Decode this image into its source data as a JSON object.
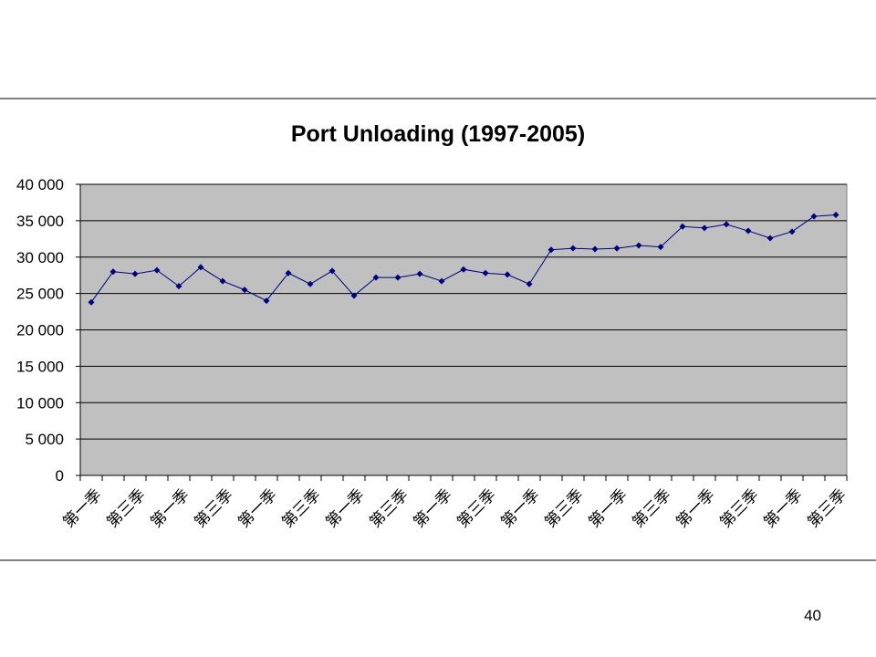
{
  "chart_data": {
    "type": "line",
    "title": "Port Unloading (1997-2005)",
    "categories": [
      "第一季",
      null,
      "第三季",
      null,
      "第一季",
      null,
      "第三季",
      null,
      "第一季",
      null,
      "第三季",
      null,
      "第一季",
      null,
      "第三季",
      null,
      "第一季",
      null,
      "第三季",
      null,
      "第一季",
      null,
      "第三季",
      null,
      "第一季",
      null,
      "第三季",
      null,
      "第一季",
      null,
      "第三季",
      null,
      "第一季",
      null,
      "第三季"
    ],
    "values": [
      23800,
      28000,
      27700,
      28200,
      26000,
      28600,
      26700,
      25500,
      24000,
      27800,
      26300,
      28100,
      24700,
      27200,
      27200,
      27700,
      26700,
      28300,
      27800,
      27600,
      26300,
      31000,
      31200,
      31100,
      31200,
      31600,
      31400,
      34200,
      34000,
      34500,
      33600,
      32600,
      33500,
      35600,
      35800
    ],
    "color": "#000080",
    "ylim": [
      0,
      40000
    ],
    "yticks": [
      0,
      {
        "value": 5000,
        "label": "5 000"
      },
      {
        "value": 10000,
        "label": "10 000"
      },
      {
        "value": 15000,
        "label": "15 000"
      },
      {
        "value": 20000,
        "label": "20 000"
      },
      {
        "value": 25000,
        "label": "25 000"
      },
      {
        "value": 30000,
        "label": "30 000"
      },
      {
        "value": 35000,
        "label": "35 000"
      },
      {
        "value": 40000,
        "label": "40 000"
      }
    ],
    "grid": true
  },
  "page_number": "40"
}
